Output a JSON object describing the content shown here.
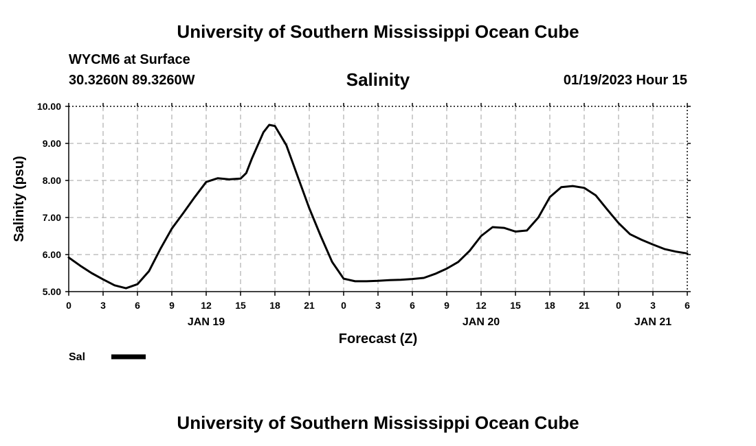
{
  "header": {
    "title": "University of Southern Mississippi Ocean Cube",
    "station": "WYCM6 at Surface",
    "coords": "30.3260N  89.3260W",
    "timestamp": "01/19/2023 Hour 15"
  },
  "footer": {
    "title": "University of Southern Mississippi Ocean Cube"
  },
  "chart_data": {
    "type": "line",
    "title": "Salinity",
    "xlabel": "Forecast (Z)",
    "ylabel": "Salinity (psu)",
    "ylim": [
      5.0,
      10.0
    ],
    "xlim": [
      0,
      54
    ],
    "x_unit": "forecast hours",
    "yticks": [
      "5.00",
      "6.00",
      "7.00",
      "8.00",
      "9.00",
      "10.00"
    ],
    "xticks": [
      {
        "hour": 0,
        "label": "0"
      },
      {
        "hour": 3,
        "label": "3"
      },
      {
        "hour": 6,
        "label": "6"
      },
      {
        "hour": 9,
        "label": "9"
      },
      {
        "hour": 12,
        "label": "12"
      },
      {
        "hour": 15,
        "label": "15"
      },
      {
        "hour": 18,
        "label": "18"
      },
      {
        "hour": 21,
        "label": "21"
      },
      {
        "hour": 24,
        "label": "0"
      },
      {
        "hour": 27,
        "label": "3"
      },
      {
        "hour": 30,
        "label": "6"
      },
      {
        "hour": 33,
        "label": "9"
      },
      {
        "hour": 36,
        "label": "12"
      },
      {
        "hour": 39,
        "label": "15"
      },
      {
        "hour": 42,
        "label": "18"
      },
      {
        "hour": 45,
        "label": "21"
      },
      {
        "hour": 48,
        "label": "0"
      },
      {
        "hour": 51,
        "label": "3"
      },
      {
        "hour": 54,
        "label": "6"
      }
    ],
    "day_labels": [
      {
        "hour": 12,
        "label": "JAN 19"
      },
      {
        "hour": 36,
        "label": "JAN 20"
      },
      {
        "hour": 51,
        "label": "JAN 21"
      }
    ],
    "grid": true,
    "legend": {
      "placement": "bottom-left",
      "entries": [
        {
          "label": "Sal",
          "color": "#000000"
        }
      ]
    },
    "series": [
      {
        "name": "Sal",
        "color": "#000000",
        "x": [
          0,
          1,
          2,
          3,
          4,
          5,
          6,
          7,
          8,
          9,
          10,
          11,
          12,
          13,
          14,
          15,
          15.5,
          16,
          17,
          17.5,
          18,
          19,
          20,
          21,
          22,
          23,
          24,
          25,
          26,
          27,
          28,
          29,
          30,
          31,
          32,
          33,
          34,
          35,
          36,
          37,
          38,
          39,
          40,
          41,
          42,
          43,
          44,
          45,
          46,
          47,
          48,
          49,
          50,
          51,
          52,
          53,
          54
        ],
        "values": [
          5.92,
          5.7,
          5.5,
          5.33,
          5.17,
          5.09,
          5.2,
          5.55,
          6.15,
          6.7,
          7.12,
          7.55,
          7.96,
          8.06,
          8.03,
          8.05,
          8.2,
          8.6,
          9.3,
          9.5,
          9.47,
          8.95,
          8.1,
          7.25,
          6.5,
          5.8,
          5.35,
          5.28,
          5.28,
          5.29,
          5.31,
          5.32,
          5.34,
          5.37,
          5.48,
          5.62,
          5.8,
          6.1,
          6.5,
          6.74,
          6.72,
          6.62,
          6.65,
          7.0,
          7.55,
          7.82,
          7.85,
          7.8,
          7.6,
          7.22,
          6.85,
          6.55,
          6.4,
          6.27,
          6.15,
          6.08,
          6.03
        ]
      }
    ]
  }
}
